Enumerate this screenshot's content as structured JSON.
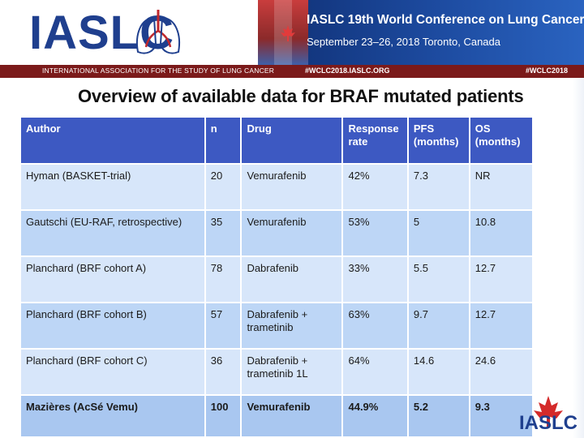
{
  "header": {
    "logo_text": "IASLC",
    "org_name": "INTERNATIONAL ASSOCIATION FOR THE STUDY OF LUNG CANCER",
    "conference_title": "IASLC 19th World Conference on Lung Cancer",
    "conference_dates": "September 23–26, 2018  Toronto, Canada",
    "website": "WCLC2018.IASLC.ORG",
    "hashtag": "#WCLC2018"
  },
  "slide": {
    "title": "Overview of available data for BRAF mutated patients"
  },
  "table": {
    "headers": [
      "Author",
      "n",
      "Drug",
      "Response rate",
      "PFS (months)",
      "OS (months)"
    ],
    "rows": [
      [
        "Hyman (BASKET-trial)",
        "20",
        "Vemurafenib",
        "42%",
        "7.3",
        "NR"
      ],
      [
        "Gautschi (EU-RAF, retrospective)",
        "35",
        "Vemurafenib",
        "53%",
        "5",
        "10.8"
      ],
      [
        "Planchard  (BRF cohort A)",
        "78",
        "Dabrafenib",
        "33%",
        "5.5",
        "12.7"
      ],
      [
        "Planchard    (BRF cohort B)",
        "57",
        "Dabrafenib + trametinib",
        "63%",
        "9.7",
        "12.7"
      ],
      [
        "Planchard    (BRF cohort C)",
        "36",
        "Dabrafenib + trametinib 1L",
        "64%",
        "14.6",
        "24.6"
      ],
      [
        "Mazières    (AcSé Vemu)",
        "100",
        "Vemurafenib",
        "44.9%",
        "5.2",
        "9.3"
      ]
    ]
  },
  "footer": {
    "corner_logo_text": "IASLC"
  },
  "colors": {
    "header_blue": "#1f3f8e",
    "table_header": "#3d59c2",
    "row_light": "#d7e6fa",
    "row_dark": "#bdd6f6",
    "tagline_bar": "#7b1a1a"
  }
}
